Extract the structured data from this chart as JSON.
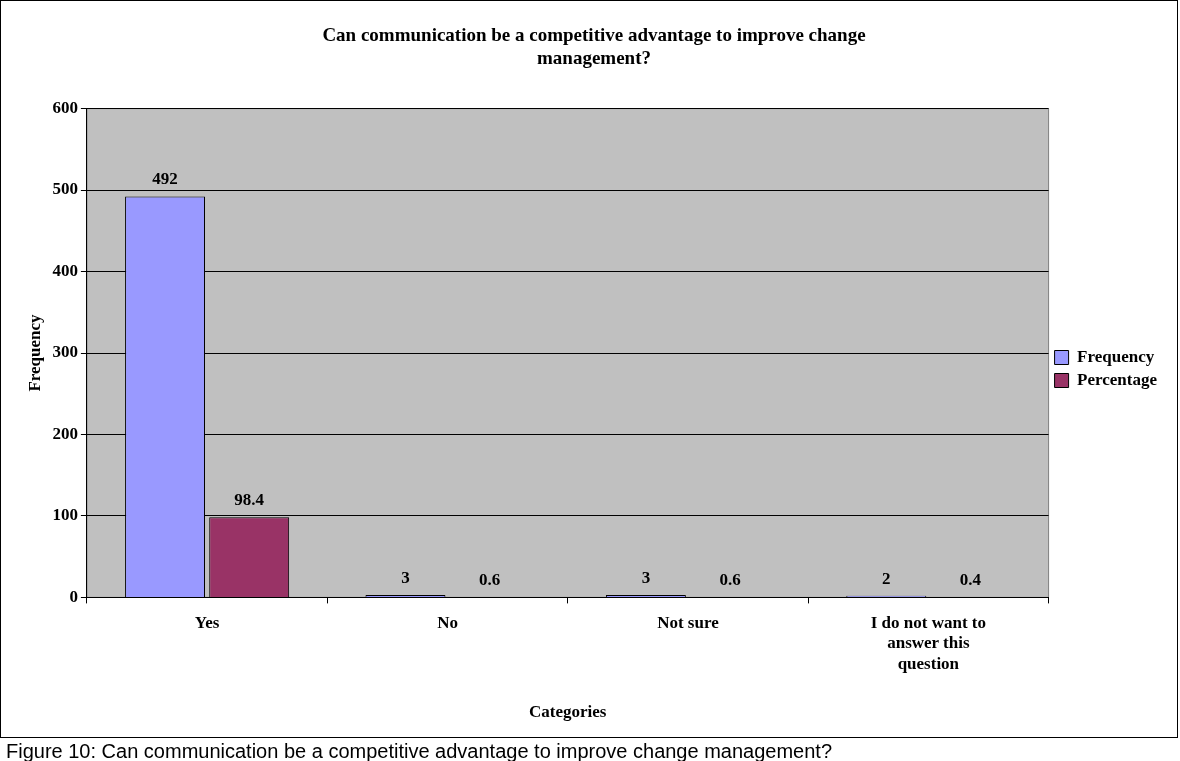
{
  "chart_data": {
    "type": "bar",
    "title": "Can communication be a competitive advantage to improve change management?",
    "xlabel": "Categories",
    "ylabel": "Frequency",
    "categories": [
      "Yes",
      "No",
      "Not sure",
      "I do not want to answer this question"
    ],
    "series": [
      {
        "name": "Frequency",
        "color": "#9999ff",
        "values": [
          492,
          3,
          3,
          2
        ]
      },
      {
        "name": "Percentage",
        "color": "#993366",
        "values": [
          98.4,
          0.6,
          0.6,
          0.4
        ]
      }
    ],
    "ylim": [
      0,
      600
    ],
    "yticks": [
      0,
      100,
      200,
      300,
      400,
      500,
      600
    ],
    "grid": "y",
    "legend": "right",
    "data_labels": true,
    "annotations": [
      "Figure 10: Can communication be a competitive advantage to improve change management?"
    ]
  }
}
